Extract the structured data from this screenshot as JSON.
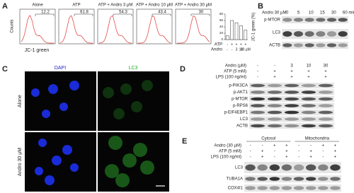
{
  "panel_a": {
    "label": "A",
    "y_label": "Counts",
    "x_label": "JC-1 green",
    "histograms": [
      {
        "title": "Alone",
        "value": "12.2"
      },
      {
        "title": "ATP",
        "value": "61.8"
      },
      {
        "title": "ATP + Andro 3 μM",
        "value": "54.3"
      },
      {
        "title": "ATP + Andro 10 μM",
        "value": "43.4"
      },
      {
        "title": "ATP + Andro 30 μM",
        "value": "30"
      }
    ]
  },
  "chart_data": {
    "type": "bar",
    "y_label": "JC-1 green (%)",
    "values": [
      12,
      60,
      53,
      44,
      30
    ],
    "color": "#ffffff",
    "ylim": [
      0,
      80
    ],
    "yticks": [
      0,
      20,
      40,
      60,
      80
    ],
    "conditions": [
      {
        "name": "ATP",
        "levels": [
          "-",
          "+",
          "+",
          "+",
          "+"
        ]
      },
      {
        "name": "Andro",
        "levels": [
          "-",
          "-",
          "3",
          "10",
          "30 μM"
        ]
      }
    ]
  },
  "panel_b": {
    "label": "B",
    "treatment": "Andro 30 μM",
    "times": [
      "0",
      "5",
      "10",
      "15",
      "30",
      "60 min"
    ],
    "blots": [
      "p-MTOR",
      "LC3",
      "ACTB"
    ]
  },
  "panel_c": {
    "label": "C",
    "channels": [
      "DAPI",
      "LC3"
    ],
    "conditions": [
      "Alone",
      "Andro 30 μM"
    ]
  },
  "panel_d": {
    "label": "D",
    "treatments": [
      {
        "name": "Andro (μM)",
        "levels": [
          "-",
          "-",
          "3",
          "10",
          "30"
        ]
      },
      {
        "name": "ATP (5 mM)",
        "levels": [
          "-",
          "+",
          "+",
          "+",
          "+"
        ]
      },
      {
        "name": "LPS (100 ng/ml)",
        "levels": [
          "-",
          "+",
          "+",
          "+",
          "+"
        ]
      }
    ],
    "blots": [
      "p-PIK3CA",
      "p-AKT1",
      "p-MTOR",
      "p-RPS6",
      "p-EIF4EBP1",
      "LC3",
      "ACTB"
    ]
  },
  "panel_e": {
    "label": "E",
    "fractions": [
      "Cytosol",
      "Mitochondria"
    ],
    "treatments": [
      {
        "name": "Andro (30 μM)",
        "levels": [
          "-",
          "-",
          "+",
          "+",
          "-",
          "-",
          "+",
          "+"
        ]
      },
      {
        "name": "ATP (5 mM)",
        "levels": [
          "-",
          "+",
          "-",
          "+",
          "-",
          "+",
          "-",
          "+"
        ]
      },
      {
        "name": "LPS (100 ng/ml)",
        "levels": [
          "-",
          "+",
          "-",
          "+",
          "-",
          "+",
          "-",
          "+"
        ]
      }
    ],
    "blots": [
      "LC3",
      "TUBA1A",
      "COX4I1"
    ]
  }
}
